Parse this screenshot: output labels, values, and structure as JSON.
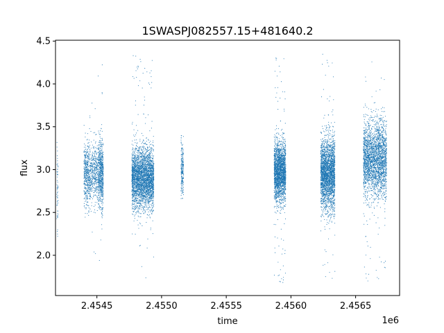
{
  "chart_data": {
    "type": "scatter",
    "title": "1SWASPJ082557.15+481640.2",
    "xlabel": "time",
    "ylabel": "flux",
    "x_offset_label": "1e6",
    "xlim": [
      2454180,
      2456840
    ],
    "ylim": [
      1.53,
      4.51
    ],
    "x_tick_values": [
      2454500,
      2455000,
      2455500,
      2456000,
      2456500
    ],
    "x_tick_labels": [
      "2.4545",
      "2.4550",
      "2.4555",
      "2.4560",
      "2.4565"
    ],
    "y_tick_values": [
      2.0,
      2.5,
      3.0,
      3.5,
      4.0,
      4.5
    ],
    "y_tick_labels": [
      "2.0",
      "2.5",
      "3.0",
      "3.5",
      "4.0",
      "4.5"
    ],
    "grid": false,
    "point_color": "#1f77b4",
    "seasons": [
      {
        "x_start": 2454190,
        "x_end": 2454200,
        "y_center": 2.85,
        "y_spread": 0.3,
        "y_min": 1.95,
        "y_max": 3.35,
        "points": 60
      },
      {
        "x_start": 2454400,
        "x_end": 2454440,
        "y_center": 2.95,
        "y_spread": 0.18,
        "y_min": 2.4,
        "y_max": 3.55,
        "points": 400
      },
      {
        "x_start": 2454440,
        "x_end": 2454510,
        "y_center": 2.95,
        "y_spread": 0.16,
        "y_min": 1.85,
        "y_max": 3.9,
        "points": 450
      },
      {
        "x_start": 2454510,
        "x_end": 2454550,
        "y_center": 2.95,
        "y_spread": 0.2,
        "y_min": 1.7,
        "y_max": 4.35,
        "points": 650
      },
      {
        "x_start": 2454770,
        "x_end": 2454940,
        "y_center": 2.9,
        "y_spread": 0.17,
        "y_min": 1.7,
        "y_max": 4.38,
        "points": 3200
      },
      {
        "x_start": 2455150,
        "x_end": 2455170,
        "y_center": 3.0,
        "y_spread": 0.17,
        "y_min": 1.88,
        "y_max": 3.52,
        "points": 220
      },
      {
        "x_start": 2455870,
        "x_end": 2455960,
        "y_center": 2.98,
        "y_spread": 0.17,
        "y_min": 1.67,
        "y_max": 4.35,
        "points": 2200
      },
      {
        "x_start": 2456230,
        "x_end": 2456340,
        "y_center": 2.95,
        "y_spread": 0.2,
        "y_min": 1.67,
        "y_max": 4.37,
        "points": 2600
      },
      {
        "x_start": 2456560,
        "x_end": 2456740,
        "y_center": 3.12,
        "y_spread": 0.22,
        "y_min": 1.68,
        "y_max": 4.33,
        "points": 2600
      }
    ]
  }
}
